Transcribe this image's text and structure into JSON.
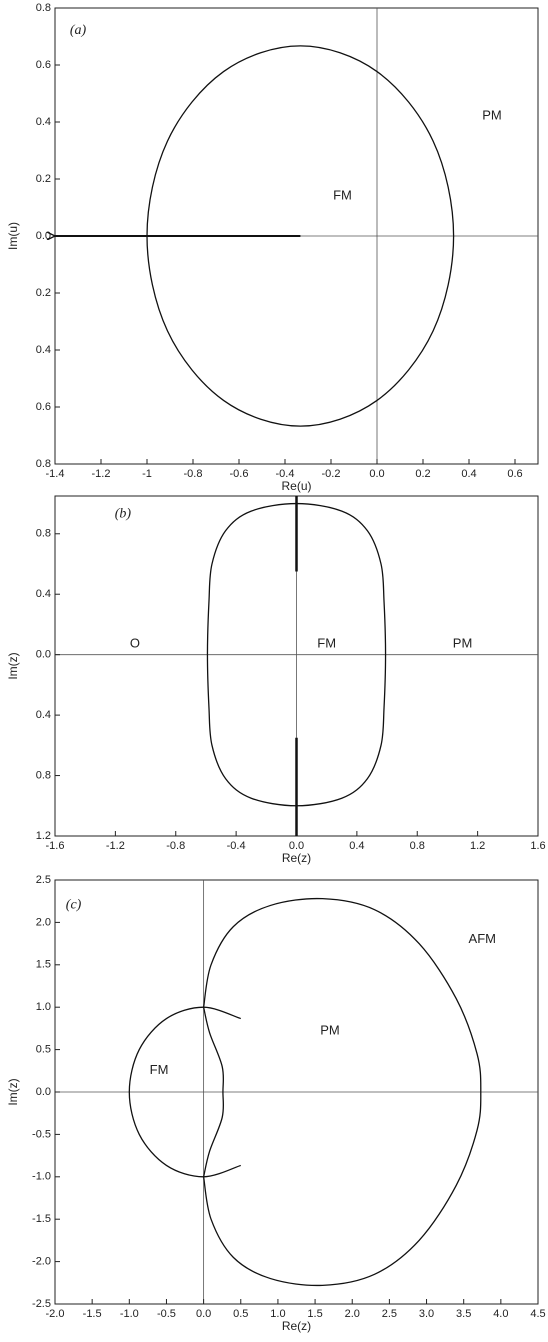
{
  "chart_data": [
    {
      "type": "line",
      "xlabel": "Re(u)",
      "ylabel": "Im(u)",
      "xlim": [
        -1.4,
        0.7
      ],
      "ylim": [
        -0.8,
        0.8
      ],
      "xticks": [
        -1.4,
        -1.2,
        -1.0,
        -0.8,
        -0.6,
        -0.4,
        -0.2,
        {
          "value": 0,
          "label": "0.0"
        },
        0.2,
        0.4,
        0.6
      ],
      "yticks": [
        0.8,
        0.6,
        0.4,
        0.2,
        {
          "value": 0,
          "label": "0.0"
        },
        {
          "value": -0.2,
          "label": "0.2"
        },
        {
          "value": -0.4,
          "label": "0.4"
        },
        {
          "value": -0.6,
          "label": "0.6"
        },
        {
          "value": -0.8,
          "label": "0.8"
        }
      ],
      "series": [
        {
          "color": "#111",
          "closed": true,
          "x": [
            0.333,
            0.244,
            0,
            -0.333,
            -0.667,
            -0.911,
            -1,
            -0.911,
            -0.667,
            -0.333,
            0,
            0.244
          ],
          "values": [
            0,
            0.333,
            0.577,
            0.667,
            0.577,
            0.333,
            0,
            -0.333,
            -0.577,
            -0.667,
            -0.577,
            -0.333
          ]
        }
      ],
      "arrow": {
        "x": [
          -0.333,
          -1.4
        ],
        "y": [
          0,
          0
        ]
      },
      "annotations": [
        {
          "text": "(a)",
          "x": -1.3,
          "y": 0.72
        },
        {
          "text": "PM",
          "x": 0.5,
          "y": 0.42
        },
        {
          "text": "FM",
          "x": -0.15,
          "y": 0.14
        }
      ]
    },
    {
      "type": "line",
      "xlabel": "Re(z)",
      "ylabel": "Im(z)",
      "xlim": [
        -1.6,
        1.6
      ],
      "ylim": [
        -1.2,
        1.05
      ],
      "xticks": [
        -1.6,
        -1.2,
        -0.8,
        -0.4,
        {
          "value": 0,
          "label": "0.0"
        },
        0.4,
        0.8,
        1.2,
        1.6
      ],
      "yticks": [
        0.8,
        0.4,
        {
          "value": 0,
          "label": "0.0"
        },
        {
          "value": -0.4,
          "label": "0.4"
        },
        {
          "value": -0.8,
          "label": "0.8"
        },
        {
          "value": -1.2,
          "label": "1.2"
        }
      ],
      "series": [
        {
          "color": "#111",
          "closed": true,
          "x": [
            0,
            0.3,
            0.47,
            0.56,
            0.58,
            0.59,
            0.58,
            0.56,
            0.47,
            0.3,
            0,
            -0.3,
            -0.47,
            -0.56,
            -0.58,
            -0.59,
            -0.58,
            -0.56,
            -0.47,
            -0.3
          ],
          "values": [
            1,
            0.95,
            0.82,
            0.6,
            0.35,
            0,
            -0.35,
            -0.6,
            -0.82,
            -0.95,
            -1,
            -0.95,
            -0.82,
            -0.6,
            -0.35,
            0,
            0.35,
            0.6,
            0.82,
            0.95
          ]
        },
        {
          "color": "#111",
          "width": 2.5,
          "x": [
            0,
            0
          ],
          "values": [
            1.05,
            0.55
          ]
        },
        {
          "color": "#111",
          "width": 2.5,
          "x": [
            0,
            0
          ],
          "values": [
            -0.55,
            -1.2
          ]
        }
      ],
      "annotations": [
        {
          "text": "(b)",
          "x": -1.15,
          "y": 0.93
        },
        {
          "text": "O",
          "x": -1.07,
          "y": 0.07
        },
        {
          "text": "FM",
          "x": 0.2,
          "y": 0.07
        },
        {
          "text": "PM",
          "x": 1.1,
          "y": 0.07
        }
      ]
    },
    {
      "type": "line",
      "xlabel": "Re(z)",
      "ylabel": "Im(z)",
      "xlim": [
        -2,
        4.5
      ],
      "ylim": [
        -2.5,
        2.5
      ],
      "xticks": [
        {
          "value": -2,
          "label": "-2.0"
        },
        -1.5,
        {
          "value": -1,
          "label": "-1.0"
        },
        -0.5,
        {
          "value": 0,
          "label": "0.0"
        },
        0.5,
        {
          "value": 1,
          "label": "1.0"
        },
        1.5,
        {
          "value": 2,
          "label": "2.0"
        },
        2.5,
        {
          "value": 3,
          "label": "3.0"
        },
        3.5,
        {
          "value": 4,
          "label": "4.0"
        },
        4.5
      ],
      "yticks": [
        2.5,
        {
          "value": 2,
          "label": "2.0"
        },
        1.5,
        {
          "value": 1,
          "label": "1.0"
        },
        0.5,
        {
          "value": 0,
          "label": "0.0"
        },
        -0.5,
        {
          "value": -1,
          "label": "-1.0"
        },
        -1.5,
        {
          "value": -2,
          "label": "-2.0"
        },
        -2.5
      ],
      "series": [
        {
          "color": "#111",
          "x": [
            0.5,
            0,
            -0.5,
            -0.866,
            -1,
            -0.866,
            -0.5,
            0,
            0.5
          ],
          "values": [
            0.866,
            1,
            0.866,
            0.5,
            0,
            -0.5,
            -0.866,
            -1,
            -0.866
          ]
        },
        {
          "color": "#111",
          "x": [
            0,
            0.08,
            0.25,
            0.26,
            0.25,
            0.08,
            0
          ],
          "values": [
            1,
            0.7,
            0.3,
            0,
            -0.3,
            -0.7,
            -1
          ]
        },
        {
          "color": "#111",
          "x": [
            0,
            0.1,
            0.4,
            0.9,
            1.6,
            2.3,
            2.9,
            3.4,
            3.68,
            3.73,
            3.68,
            3.4,
            2.9,
            2.3,
            1.6,
            0.9,
            0.4,
            0.1,
            0
          ],
          "values": [
            1,
            1.5,
            1.95,
            2.2,
            2.28,
            2.15,
            1.75,
            1.1,
            0.45,
            0,
            -0.45,
            -1.1,
            -1.75,
            -2.15,
            -2.28,
            -2.2,
            -1.95,
            -1.5,
            -1
          ]
        }
      ],
      "annotations": [
        {
          "text": "(c)",
          "x": -1.75,
          "y": 2.2
        },
        {
          "text": "AFM",
          "x": 3.75,
          "y": 1.8
        },
        {
          "text": "PM",
          "x": 1.7,
          "y": 0.72
        },
        {
          "text": "FM",
          "x": -0.6,
          "y": 0.25
        }
      ]
    }
  ]
}
